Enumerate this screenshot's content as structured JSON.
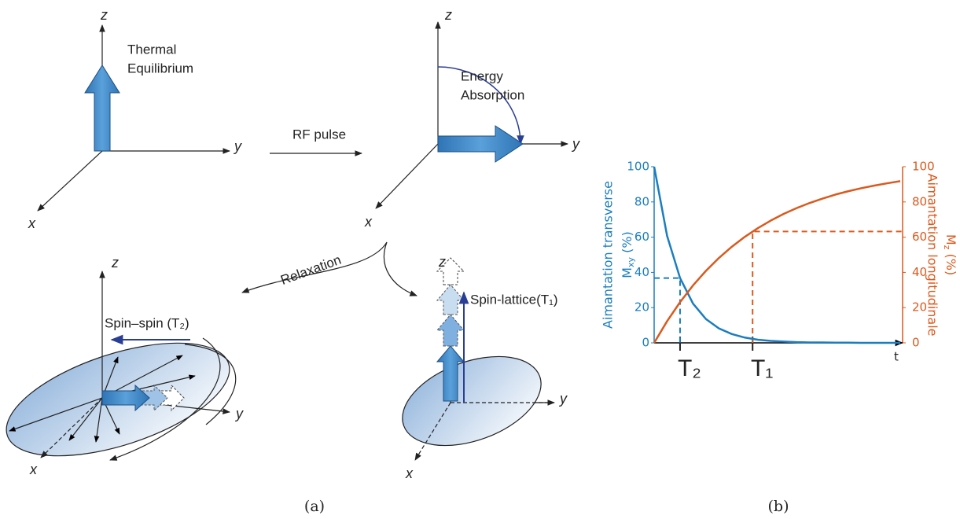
{
  "figure": {
    "diagrams": [
      {
        "label": [
          "Thermal",
          "Equilibrium"
        ],
        "axes": [
          "z",
          "y",
          "x"
        ]
      },
      {
        "label": [
          "Energy",
          "Absorption"
        ],
        "axes": [
          "z",
          "y",
          "x"
        ]
      },
      {
        "label": [
          "Spin–spin (T₂)"
        ],
        "axes": [
          "z",
          "y",
          "x"
        ]
      },
      {
        "label": [
          "Spin-lattice(T₁)"
        ],
        "axes": [
          "z",
          "y",
          "x"
        ]
      }
    ],
    "transitions": [
      "RF pulse",
      "Relaxation"
    ],
    "captions": [
      "(a)",
      "(b)"
    ]
  },
  "chart_data": {
    "type": "line",
    "x": [
      0,
      0.5,
      1,
      1.5,
      2,
      2.5,
      3,
      3.5,
      4,
      4.5,
      5,
      5.5,
      6,
      6.5,
      7,
      7.5,
      8,
      8.5,
      9,
      9.5
    ],
    "series": [
      {
        "name": "Mxy",
        "color": "#1b7dbf",
        "axis": "y",
        "values": [
          100,
          60.7,
          36.8,
          22.3,
          13.5,
          8.2,
          5.0,
          3.0,
          1.8,
          1.1,
          0.7,
          0.4,
          0.2,
          0.2,
          0.1,
          0.1,
          0,
          0,
          0,
          0
        ]
      },
      {
        "name": "Mz",
        "color": "#d95a1e",
        "axis": "y2",
        "values": [
          0,
          12.3,
          23.1,
          32.6,
          40.9,
          48.2,
          54.6,
          60.2,
          65.1,
          69.4,
          73.2,
          76.5,
          79.4,
          81.9,
          84.2,
          86.1,
          87.8,
          89.3,
          90.6,
          91.8
        ]
      }
    ],
    "xlim": [
      0,
      9.5
    ],
    "xticks": [
      {
        "value": 1,
        "label": "T₂"
      },
      {
        "value": 3.8,
        "label": "T₁"
      }
    ],
    "xlabel": "t",
    "ylim": [
      0,
      100
    ],
    "yticks": [
      0,
      20,
      40,
      60,
      80,
      100
    ],
    "y2lim": [
      0,
      100
    ],
    "y2ticks": [
      0,
      20,
      40,
      60,
      80,
      100
    ],
    "ylabel": {
      "title": "Aimantation transverse",
      "base": "M",
      "sub": "xy",
      "unit": " (%)"
    },
    "y2label": {
      "title": "Aimantation longitudinale",
      "base": "M",
      "sub": "z",
      "unit": " (%)"
    },
    "reference_lines": [
      {
        "x": 1,
        "y": 36.8,
        "axis": "y"
      },
      {
        "x": 3.8,
        "y": 63.2,
        "axis": "y2"
      }
    ]
  }
}
